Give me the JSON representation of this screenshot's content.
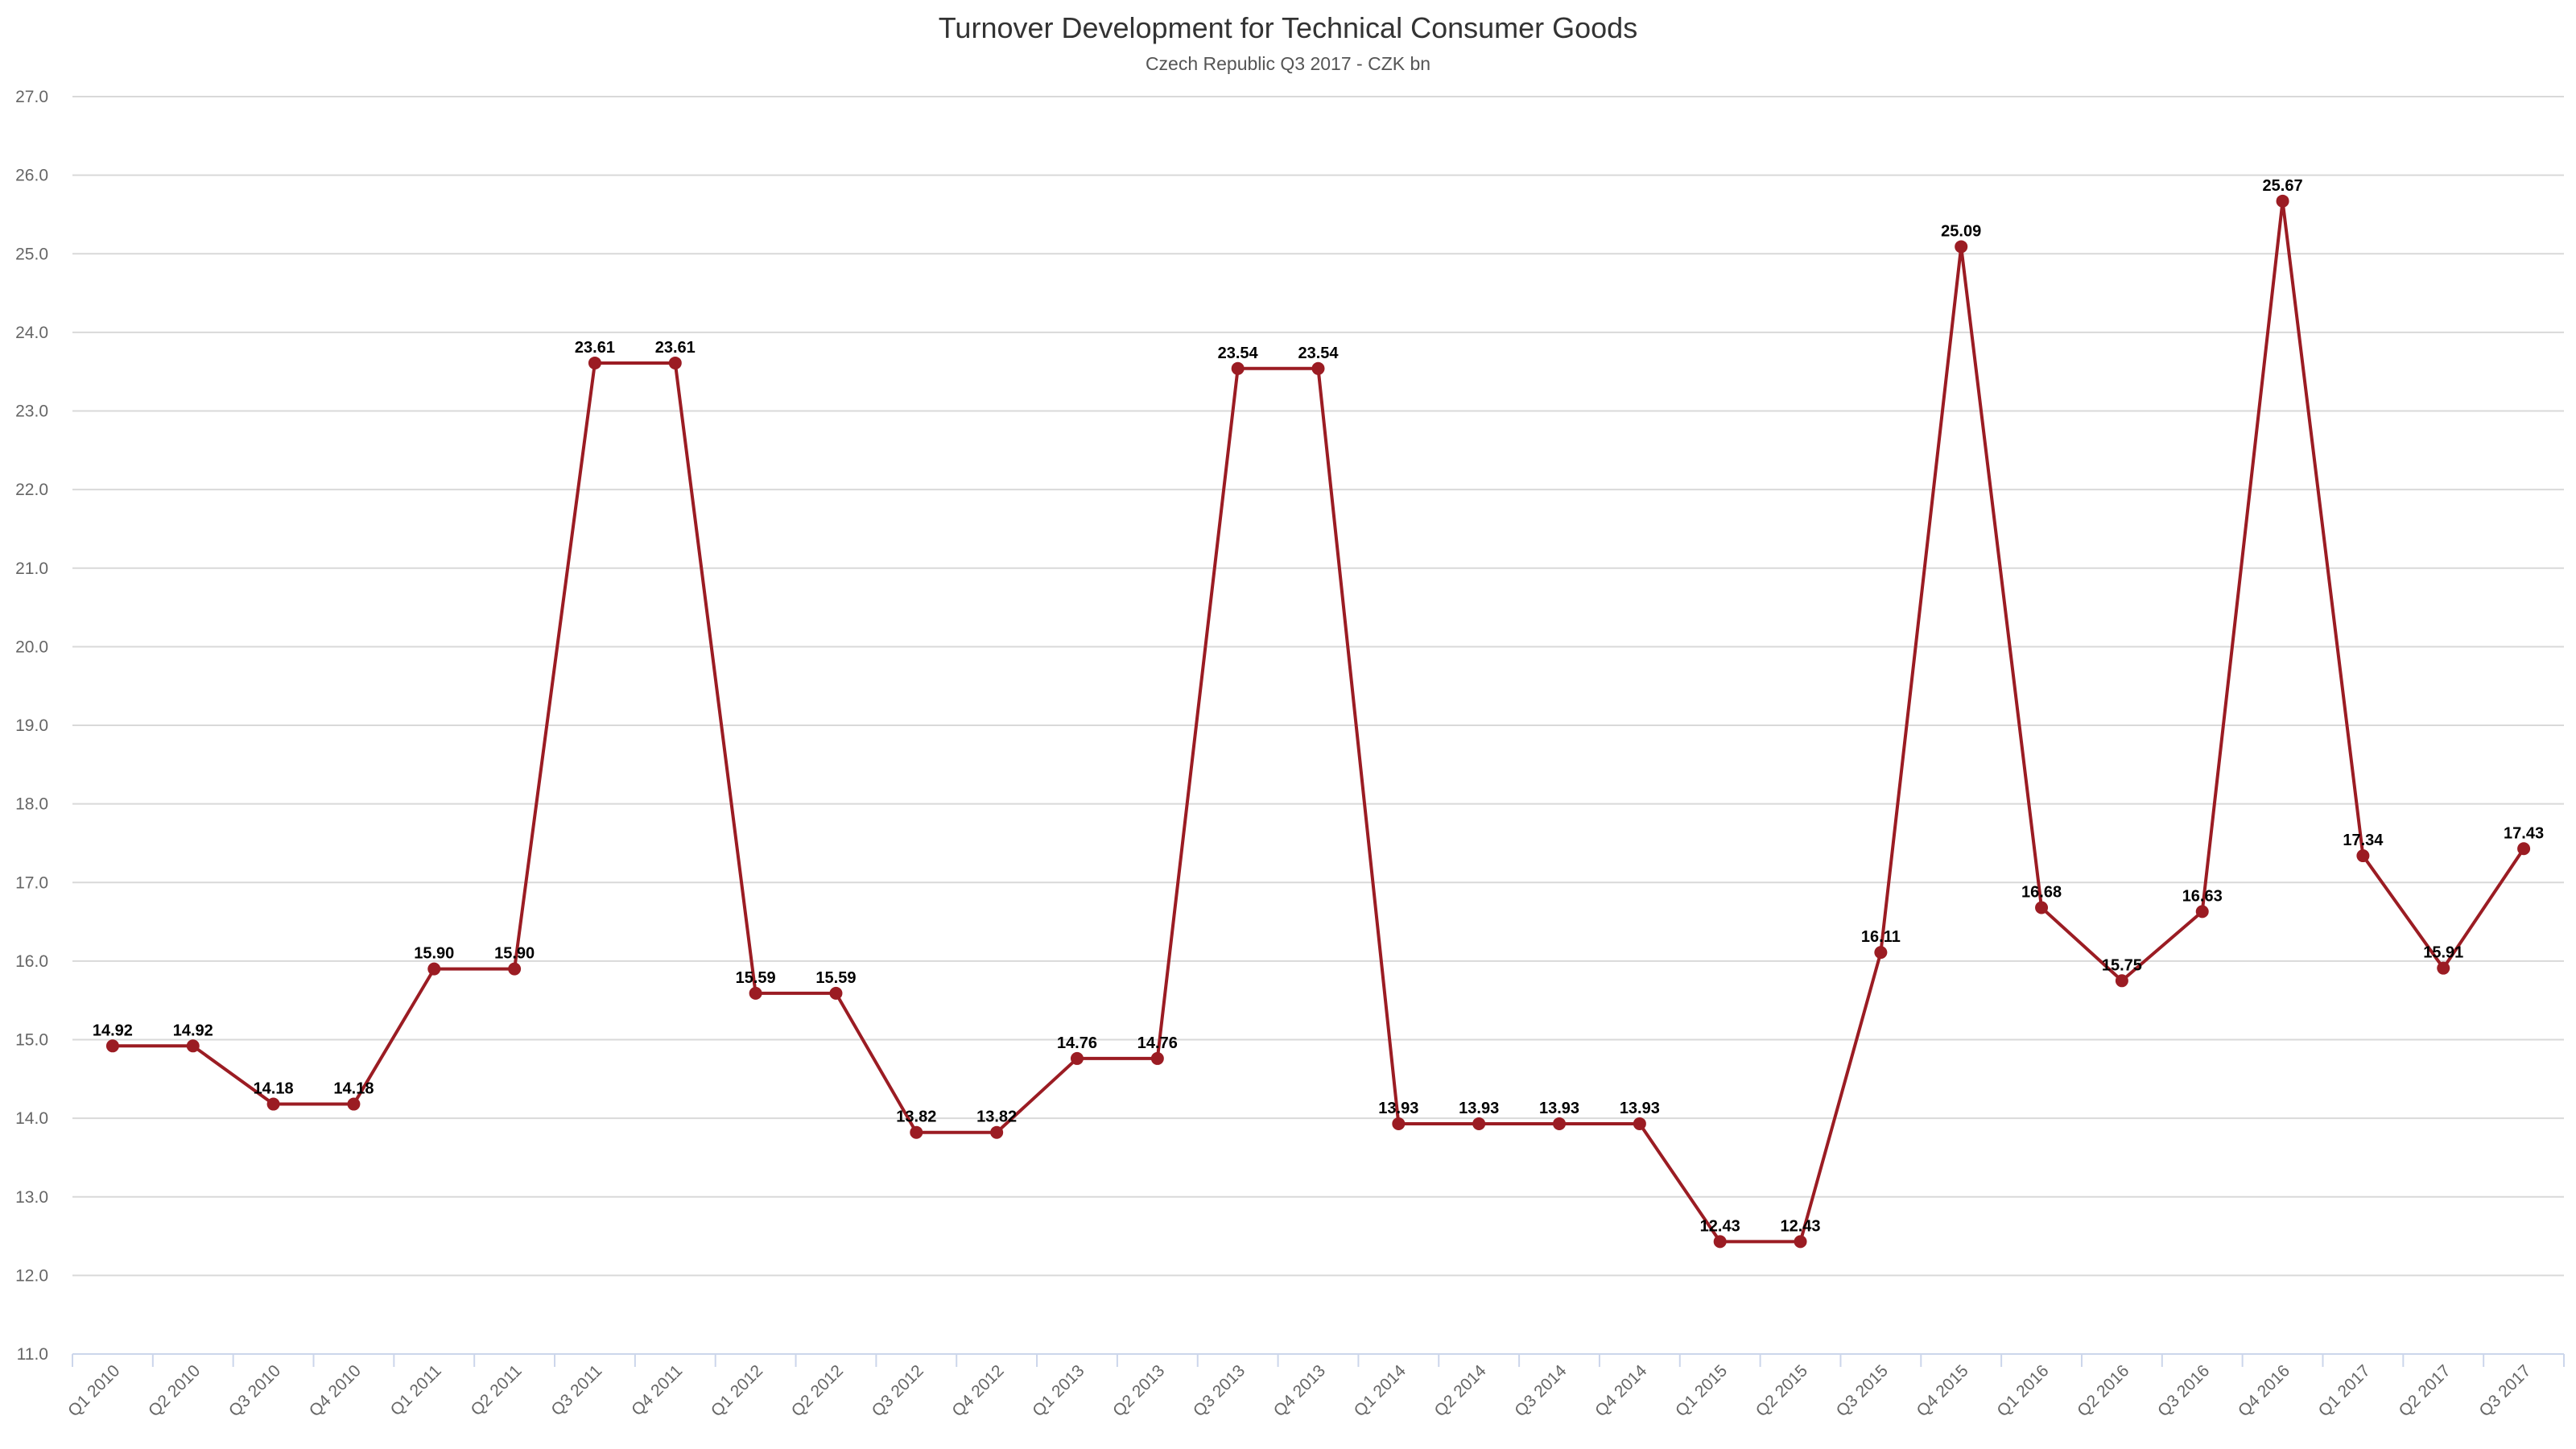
{
  "chart_data": {
    "type": "line",
    "title": "Turnover Development for Technical Consumer Goods",
    "subtitle": "Czech Republic Q3 2017 - CZK bn",
    "xlabel": "",
    "ylabel": "",
    "ylim": [
      11.0,
      27.0
    ],
    "ytick_step": 1.0,
    "grid": true,
    "legend": "none",
    "colors": {
      "line": "#9b1c23",
      "grid": "#d9d9d9",
      "axis": "#ccd6eb"
    },
    "categories": [
      "Q1 2010",
      "Q2 2010",
      "Q3 2010",
      "Q4 2010",
      "Q1 2011",
      "Q2 2011",
      "Q3 2011",
      "Q4 2011",
      "Q1 2012",
      "Q2 2012",
      "Q3 2012",
      "Q4 2012",
      "Q1 2013",
      "Q2 2013",
      "Q3 2013",
      "Q4 2013",
      "Q1 2014",
      "Q2 2014",
      "Q3 2014",
      "Q4 2014",
      "Q1 2015",
      "Q2 2015",
      "Q3 2015",
      "Q4 2015",
      "Q1 2016",
      "Q2 2016",
      "Q3 2016",
      "Q4 2016",
      "Q1 2017",
      "Q2 2017",
      "Q3 2017"
    ],
    "series": [
      {
        "values": [
          14.92,
          14.92,
          14.18,
          14.18,
          15.9,
          15.9,
          23.61,
          23.61,
          15.59,
          15.59,
          13.82,
          13.82,
          14.76,
          14.76,
          23.54,
          23.54,
          13.93,
          13.93,
          13.93,
          13.93,
          12.43,
          12.43,
          16.11,
          25.09,
          16.68,
          15.75,
          16.63,
          25.67,
          17.34,
          15.91,
          17.43
        ]
      }
    ]
  }
}
